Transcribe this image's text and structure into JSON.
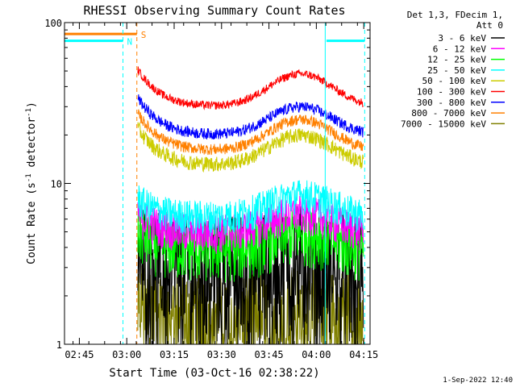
{
  "chart_data": {
    "type": "line",
    "title": "RHESSI Observing Summary Count Rates",
    "xlabel": "Start Time (03-Oct-16 02:38:22)",
    "ylabel_parts": [
      "Count Rate (s",
      "-1",
      " detector",
      "-1",
      ")"
    ],
    "y_scale": "log",
    "ylim": [
      1,
      100
    ],
    "y_ticks": [
      {
        "value": 1,
        "label": "1"
      },
      {
        "value": 10,
        "label": "10"
      },
      {
        "value": 100,
        "label": "100"
      }
    ],
    "xlim_minutes": [
      2.3,
      99
    ],
    "x_ticks": [
      {
        "minute": 7,
        "label": "02:45"
      },
      {
        "minute": 22,
        "label": "03:00"
      },
      {
        "minute": 37,
        "label": "03:15"
      },
      {
        "minute": 52,
        "label": "03:30"
      },
      {
        "minute": 67,
        "label": "03:45"
      },
      {
        "minute": 82,
        "label": "04:00"
      },
      {
        "minute": 97,
        "label": "04:15"
      }
    ],
    "legend_header": [
      "Det 1,3, FDecim 1,",
      "Att 0"
    ],
    "legend_position": "right",
    "series": [
      {
        "name": "3 - 6 keV",
        "color": "#000000",
        "base": 3.6,
        "peak": 4.2,
        "noise": 0.75
      },
      {
        "name": "6 - 12 keV",
        "color": "#ff00ff",
        "base": 5.0,
        "peak": 6.6,
        "noise": 0.28
      },
      {
        "name": "12 - 25 keV",
        "color": "#00ff00",
        "base": 3.9,
        "peak": 5.0,
        "noise": 0.4
      },
      {
        "name": "25 - 50 keV",
        "color": "#00ffff",
        "base": 6.2,
        "peak": 8.5,
        "noise": 0.25
      },
      {
        "name": "50 - 100 keV",
        "color": "#cccc00",
        "base": 13.0,
        "peak": 20.0,
        "noise": 0.11
      },
      {
        "name": "100 - 300 keV",
        "color": "#ff0000",
        "base": 30.0,
        "peak": 48.0,
        "noise": 0.06
      },
      {
        "name": "300 - 800 keV",
        "color": "#0000ff",
        "base": 20.0,
        "peak": 30.0,
        "noise": 0.08
      },
      {
        "name": "800 - 7000 keV",
        "color": "#ff8000",
        "base": 16.0,
        "peak": 25.0,
        "noise": 0.08
      },
      {
        "name": "7000 - 15000 keV",
        "color": "#808000",
        "base": 1.8,
        "peak": 2.0,
        "noise": 0.5
      }
    ],
    "data_start_minute": 25.5,
    "data_end_minute": 97,
    "flags": [
      {
        "label": "S",
        "color": "#ff8000",
        "segments": [
          [
            2.3,
            25.2
          ]
        ],
        "level": 85
      },
      {
        "label": "N",
        "color": "#00ffff",
        "segments": [
          [
            2.3,
            20.8
          ],
          [
            85.2,
            97.3
          ]
        ],
        "level": 77
      }
    ],
    "vlines": [
      {
        "minute": 20.8,
        "color": "#00ffff",
        "style": "dashed"
      },
      {
        "minute": 25.2,
        "color": "#ff8000",
        "style": "dashed"
      },
      {
        "minute": 84.8,
        "color": "#00ffff",
        "style": "solid"
      },
      {
        "minute": 97.3,
        "color": "#00ffff",
        "style": "dashed"
      }
    ]
  },
  "footer": {
    "timestamp": "1-Sep-2022 12:40"
  }
}
